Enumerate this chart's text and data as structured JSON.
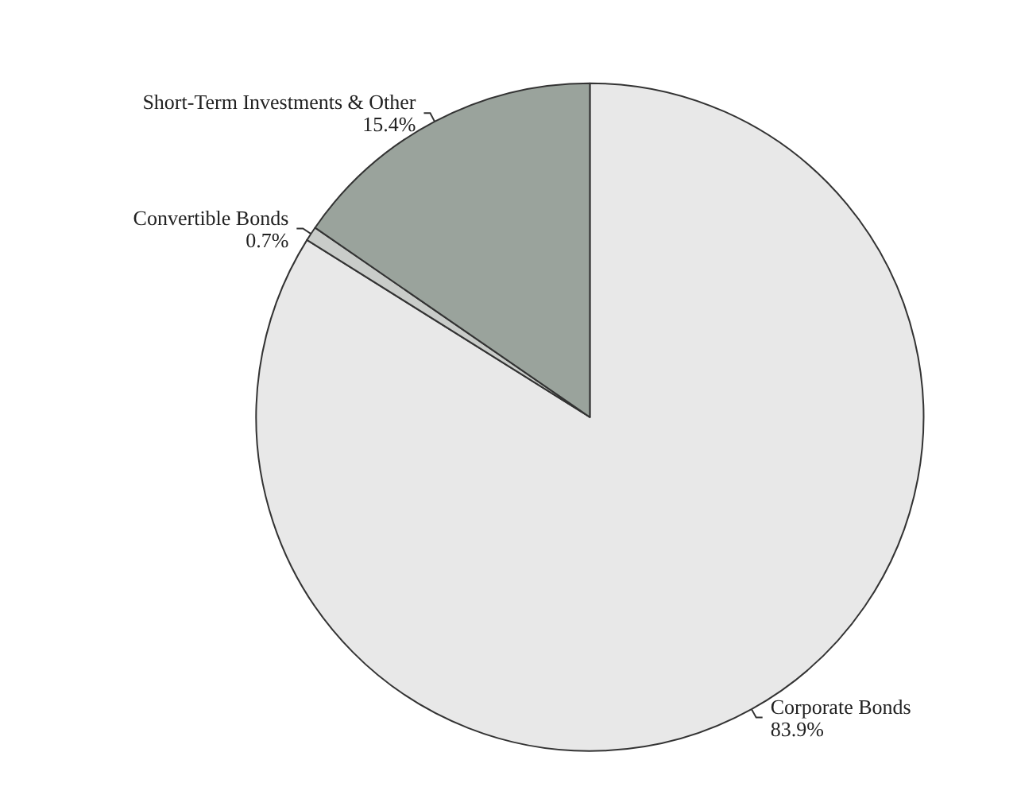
{
  "chart_data": {
    "type": "pie",
    "categories": [
      "Corporate Bonds",
      "Convertible Bonds",
      "Short-Term Investments & Other"
    ],
    "values": [
      83.9,
      0.7,
      15.4
    ],
    "colors": [
      "#e8e8e8",
      "#c9ccc9",
      "#9aa39c"
    ],
    "value_labels": [
      "83.9%",
      "0.7%",
      "15.4%"
    ],
    "legend": false
  }
}
